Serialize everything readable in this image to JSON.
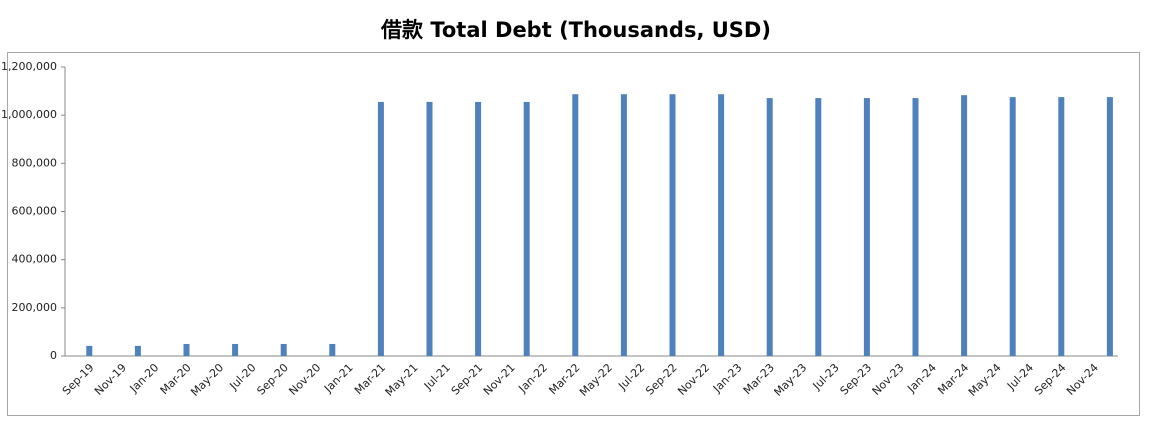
{
  "chart_data": {
    "type": "bar",
    "title": "借款 Total Debt (Thousands, USD)",
    "categories": [
      null,
      "Sep-19",
      null,
      "Nov-19",
      null,
      "Jan-20",
      null,
      "Mar-20",
      null,
      "May-20",
      null,
      "Jul-20",
      null,
      "Sep-20",
      null,
      "Nov-20",
      null,
      "Jan-21",
      null,
      "Mar-21",
      null,
      "May-21",
      null,
      "Jul-21",
      null,
      "Sep-21",
      null,
      "Nov-21",
      null,
      "Jan-22",
      null,
      "Mar-22",
      null,
      "May-22",
      null,
      "Jul-22",
      null,
      "Sep-22",
      null,
      "Nov-22",
      null,
      "Jan-23",
      null,
      "Mar-23",
      null,
      "May-23",
      null,
      "Jul-23",
      null,
      "Sep-23",
      null,
      "Nov-23",
      null,
      "Jan-24",
      null,
      "Mar-24",
      null,
      "May-24",
      null,
      "Jul-24",
      null,
      "Sep-24",
      null,
      "Nov-24",
      null
    ],
    "values": [
      null,
      42000,
      null,
      null,
      42000,
      null,
      null,
      50000,
      null,
      null,
      50000,
      null,
      null,
      50000,
      null,
      null,
      50000,
      null,
      null,
      1055000,
      null,
      null,
      1055000,
      null,
      null,
      1055000,
      null,
      null,
      1055000,
      null,
      null,
      1087000,
      null,
      null,
      1087000,
      null,
      null,
      1087000,
      null,
      null,
      1087000,
      null,
      null,
      1071000,
      null,
      null,
      1071000,
      null,
      null,
      1071000,
      null,
      null,
      1071000,
      null,
      null,
      1083000,
      null,
      null,
      1075000,
      null,
      null,
      1075000,
      null,
      null,
      1075000
    ],
    "color": "#4f81bd",
    "ylim": [
      0,
      1200000
    ],
    "yticks": [
      0,
      {
        "value": 200000,
        "label": "200,000"
      },
      {
        "value": 400000,
        "label": "400,000"
      },
      {
        "value": 600000,
        "label": "600,000"
      },
      {
        "value": 800000,
        "label": "800,000"
      },
      {
        "value": 1000000,
        "label": "1,000,000"
      },
      {
        "value": 1200000,
        "label": "1,200,000"
      }
    ],
    "grid": false
  }
}
